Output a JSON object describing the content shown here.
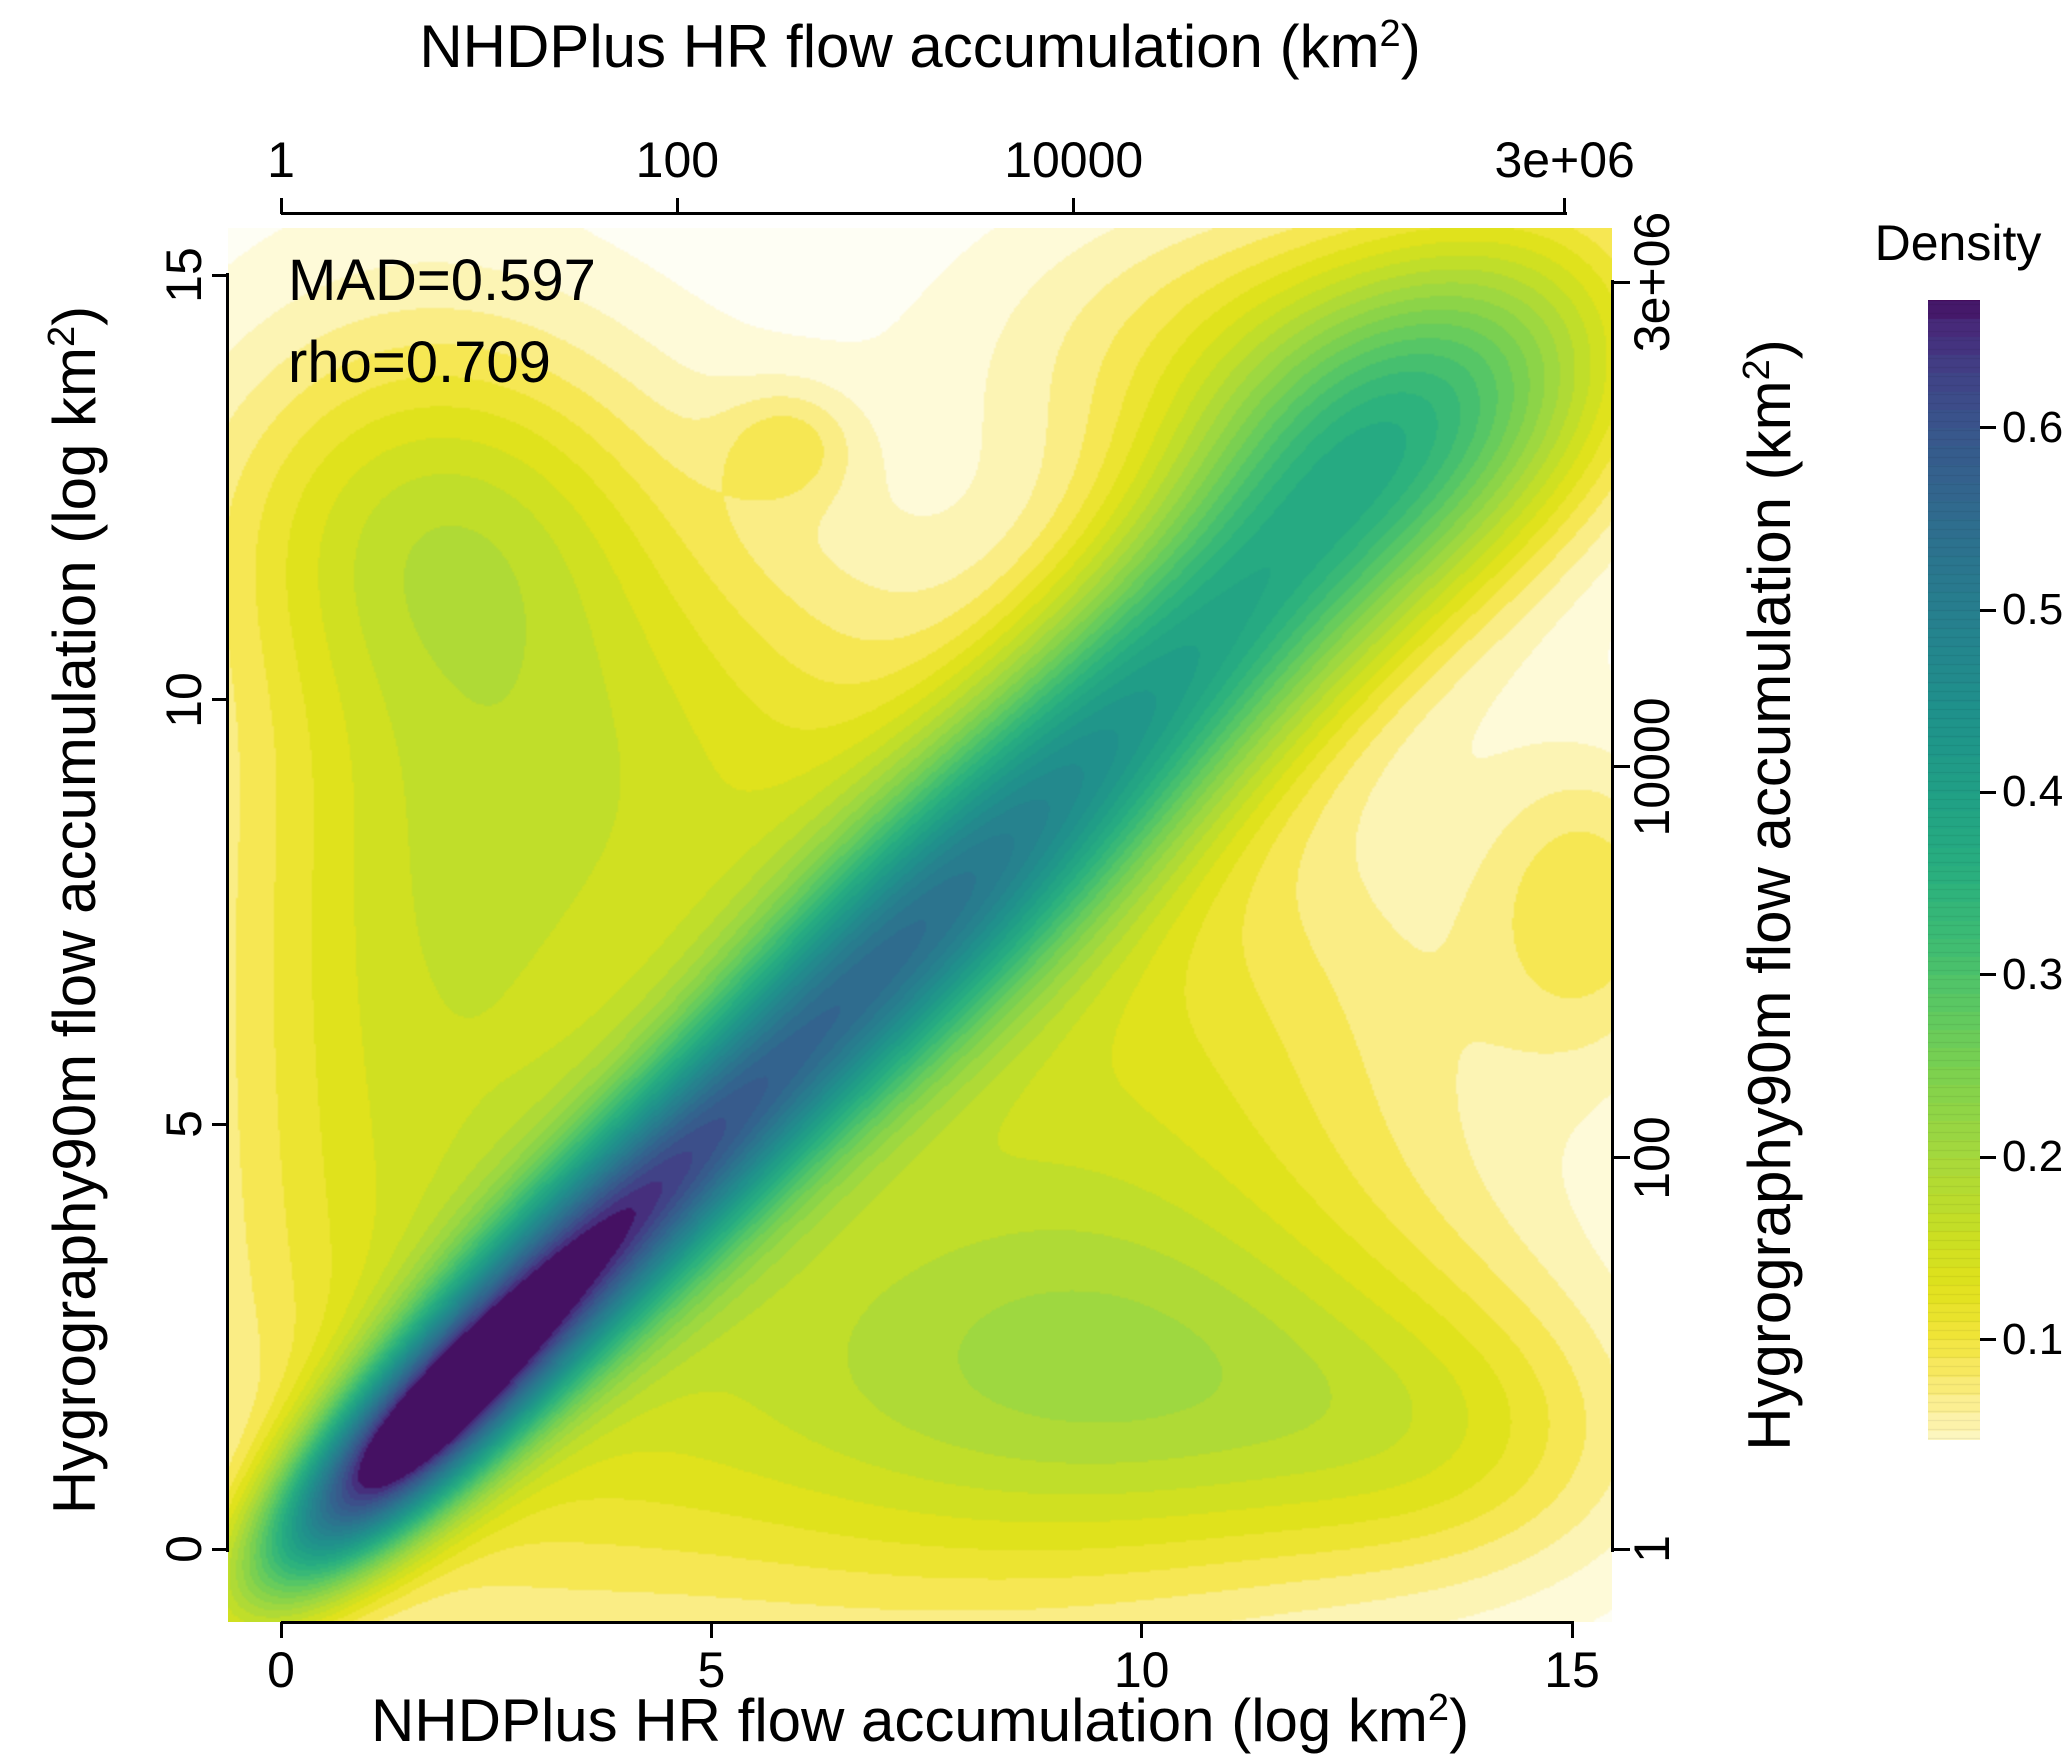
{
  "chart_data": {
    "type": "heatmap",
    "subtype": "bivariate_kernel_density_filled_contours",
    "title": "",
    "annotations": [
      "MAD=0.597",
      "rho=0.709"
    ],
    "stats": {
      "MAD": 0.597,
      "rho": 0.709
    },
    "axes": {
      "top": {
        "title_pre": "NHDPlus HR flow accumulation (km",
        "title_sup": "2",
        "title_post": ")",
        "scale": "natural-log ticks on linear log-axis",
        "ticks": [
          {
            "label": "1",
            "v": 0
          },
          {
            "label": "100",
            "v": 4.60517
          },
          {
            "label": "10000",
            "v": 9.21034
          },
          {
            "label": "3e+06",
            "v": 14.9141
          }
        ]
      },
      "bottom": {
        "title_pre": "NHDPlus HR flow accumulation (log km",
        "title_sup": "2",
        "title_post": ")",
        "ticks": [
          {
            "label": "0",
            "v": 0
          },
          {
            "label": "5",
            "v": 5
          },
          {
            "label": "10",
            "v": 10
          },
          {
            "label": "15",
            "v": 15
          }
        ]
      },
      "left": {
        "title_pre": "Hygrography90m flow accumulation (log km",
        "title_sup": "2",
        "title_post": ")",
        "ticks": [
          {
            "label": "0",
            "v": 0
          },
          {
            "label": "5",
            "v": 5
          },
          {
            "label": "10",
            "v": 10
          },
          {
            "label": "15",
            "v": 15
          }
        ]
      },
      "right": {
        "title_pre": "Hygrography90m flow accumulation (km",
        "title_sup": "2",
        "title_post": ")",
        "ticks": [
          {
            "label": "1",
            "v": 0
          },
          {
            "label": "100",
            "v": 4.60517
          },
          {
            "label": "10000",
            "v": 9.21034
          },
          {
            "label": "3e+06",
            "v": 14.9141
          }
        ]
      }
    },
    "legend": {
      "title": "Density",
      "v_top": 0.67,
      "v_bottom": 0.045,
      "ticks": [
        {
          "label": "0.6",
          "v": 0.6
        },
        {
          "label": "0.5",
          "v": 0.5
        },
        {
          "label": "0.4",
          "v": 0.4
        },
        {
          "label": "0.3",
          "v": 0.3
        },
        {
          "label": "0.2",
          "v": 0.2
        },
        {
          "label": "0.1",
          "v": 0.1
        }
      ]
    },
    "x_range": [
      -0.616,
      15.464
    ],
    "y_range": [
      -0.86,
      15.554
    ],
    "band_step": 0.02,
    "density_max": 0.67,
    "color_stops": [
      [
        0.0,
        "#ffffff"
      ],
      [
        0.02,
        "#fefce8"
      ],
      [
        0.04,
        "#fdf8c9"
      ],
      [
        0.06,
        "#fcf1a0"
      ],
      [
        0.08,
        "#f9e96a"
      ],
      [
        0.1,
        "#f2e53c"
      ],
      [
        0.13,
        "#e0e21c"
      ],
      [
        0.16,
        "#c8df24"
      ],
      [
        0.2,
        "#a7d93c"
      ],
      [
        0.24,
        "#83d34c"
      ],
      [
        0.28,
        "#5fc961"
      ],
      [
        0.32,
        "#3dbc74"
      ],
      [
        0.36,
        "#28ae80"
      ],
      [
        0.4,
        "#21a086"
      ],
      [
        0.44,
        "#1f938b"
      ],
      [
        0.48,
        "#24868e"
      ],
      [
        0.52,
        "#2a788e"
      ],
      [
        0.56,
        "#31688e"
      ],
      [
        0.6,
        "#39568c"
      ],
      [
        0.63,
        "#414287"
      ],
      [
        0.655,
        "#472a7a"
      ],
      [
        0.68,
        "#440154"
      ]
    ],
    "kernels": [
      {
        "x": 1.2,
        "y": 1.0,
        "sa": 1.5,
        "sc": 0.55,
        "rot": 45,
        "amp": 0.5
      },
      {
        "x": 2.8,
        "y": 2.7,
        "sa": 1.6,
        "sc": 0.62,
        "rot": 45,
        "amp": 0.34
      },
      {
        "x": 4.5,
        "y": 4.4,
        "sa": 1.7,
        "sc": 0.72,
        "rot": 45,
        "amp": 0.27
      },
      {
        "x": 6.3,
        "y": 6.2,
        "sa": 2.0,
        "sc": 0.82,
        "rot": 45,
        "amp": 0.24
      },
      {
        "x": 8.2,
        "y": 8.1,
        "sa": 2.2,
        "sc": 0.92,
        "rot": 45,
        "amp": 0.22
      },
      {
        "x": 10.2,
        "y": 10.2,
        "sa": 2.2,
        "sc": 1.05,
        "rot": 45,
        "amp": 0.2
      },
      {
        "x": 12.2,
        "y": 12.2,
        "sa": 2.2,
        "sc": 1.25,
        "rot": 45,
        "amp": 0.18
      },
      {
        "x": 13.9,
        "y": 13.7,
        "sa": 1.8,
        "sc": 1.35,
        "rot": 45,
        "amp": 0.12
      },
      {
        "x": 1.6,
        "y": 6.5,
        "sa": 2.0,
        "sc": 4.5,
        "rot": 0,
        "amp": 0.13
      },
      {
        "x": 1.8,
        "y": 12.2,
        "sa": 1.9,
        "sc": 1.6,
        "rot": 0,
        "amp": 0.1
      },
      {
        "x": 6.5,
        "y": 1.8,
        "sa": 3.6,
        "sc": 2.2,
        "rot": 0,
        "amp": 0.13
      },
      {
        "x": 11.0,
        "y": 1.8,
        "sa": 2.6,
        "sc": 1.6,
        "rot": 0,
        "amp": 0.1
      },
      {
        "x": 9.5,
        "y": 6.0,
        "sa": 3.2,
        "sc": 2.6,
        "rot": 0,
        "amp": 0.11
      },
      {
        "x": 4.8,
        "y": 9.3,
        "sa": 2.4,
        "sc": 2.2,
        "rot": 0,
        "amp": 0.09
      },
      {
        "x": 5.9,
        "y": 13.0,
        "sa": 0.55,
        "sc": 0.5,
        "rot": 0,
        "amp": 0.06
      },
      {
        "x": 15.2,
        "y": 7.6,
        "sa": 0.9,
        "sc": 1.3,
        "rot": 0,
        "amp": 0.08
      },
      {
        "x": 11.6,
        "y": 14.0,
        "sa": 2.3,
        "sc": 1.4,
        "rot": 0,
        "amp": 0.1
      },
      {
        "x": 13.8,
        "y": 1.2,
        "sa": 1.6,
        "sc": 1.2,
        "rot": 0,
        "amp": 0.06
      }
    ]
  }
}
